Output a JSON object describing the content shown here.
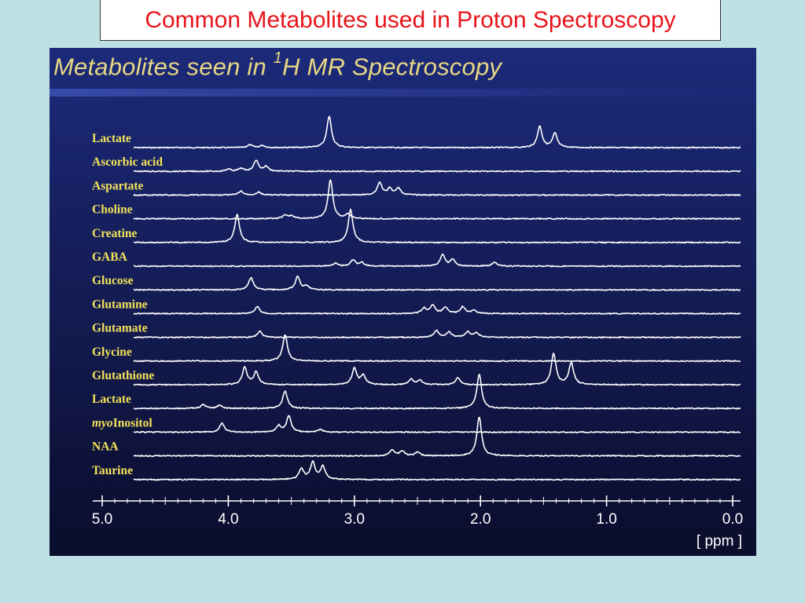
{
  "slide_title": "Common Metabolites used in Proton Spectroscopy",
  "colors": {
    "background": "#bde0e4",
    "title_text": "#e8141a",
    "panel_top": "#1c2a7a",
    "panel_bottom": "#0b0d2c",
    "label": "#f2e25a",
    "heading": "#e8d784",
    "trace": "#ffffff"
  },
  "chart_data": {
    "type": "line",
    "title_prefix": "Metabolites seen in ",
    "title_superscript": "1",
    "title_suffix": "H MR Spectroscopy",
    "xlabel": "[ ppm ]",
    "xlim": [
      5.0,
      0.0
    ],
    "x_reversed": true,
    "x_ticks": [
      "5.0",
      "4.0",
      "3.0",
      "2.0",
      "1.0",
      "0.0"
    ],
    "series": [
      {
        "name": "Lactate",
        "peaks": [
          [
            3.83,
            0.09
          ],
          [
            3.73,
            0.07
          ],
          [
            3.2,
            1.0
          ],
          [
            1.53,
            0.68
          ],
          [
            1.41,
            0.45
          ]
        ]
      },
      {
        "name": "Ascorbic acid",
        "peaks": [
          [
            4.0,
            0.07
          ],
          [
            3.9,
            0.09
          ],
          [
            3.78,
            0.35
          ],
          [
            3.7,
            0.15
          ]
        ]
      },
      {
        "name": "Aspartate",
        "peaks": [
          [
            3.9,
            0.12
          ],
          [
            3.76,
            0.09
          ],
          [
            2.8,
            0.4
          ],
          [
            2.72,
            0.2
          ],
          [
            2.65,
            0.22
          ]
        ]
      },
      {
        "name": "Choline",
        "peaks": [
          [
            3.55,
            0.11
          ],
          [
            3.5,
            0.09
          ],
          [
            3.19,
            1.25
          ],
          [
            3.05,
            0.15
          ]
        ]
      },
      {
        "name": "Creatine",
        "peaks": [
          [
            3.93,
            0.9
          ],
          [
            3.03,
            1.05
          ]
        ]
      },
      {
        "name": "GABA",
        "peaks": [
          [
            3.15,
            0.09
          ],
          [
            3.01,
            0.2
          ],
          [
            2.94,
            0.11
          ],
          [
            2.3,
            0.36
          ],
          [
            2.22,
            0.22
          ],
          [
            1.89,
            0.13
          ]
        ]
      },
      {
        "name": "Glucose",
        "peaks": [
          [
            3.82,
            0.39
          ],
          [
            3.45,
            0.42
          ],
          [
            3.38,
            0.12
          ]
        ]
      },
      {
        "name": "Glutamine",
        "peaks": [
          [
            3.77,
            0.22
          ],
          [
            2.45,
            0.17
          ],
          [
            2.38,
            0.26
          ],
          [
            2.28,
            0.2
          ],
          [
            2.14,
            0.22
          ],
          [
            2.05,
            0.11
          ]
        ]
      },
      {
        "name": "Glutamate",
        "peaks": [
          [
            3.75,
            0.2
          ],
          [
            2.35,
            0.22
          ],
          [
            2.25,
            0.17
          ],
          [
            2.1,
            0.18
          ],
          [
            2.03,
            0.14
          ]
        ]
      },
      {
        "name": "Glycine",
        "peaks": [
          [
            3.55,
            0.85
          ]
        ]
      },
      {
        "name": "Glutathione",
        "peaks": [
          [
            3.87,
            0.55
          ],
          [
            3.78,
            0.4
          ],
          [
            3.0,
            0.52
          ],
          [
            2.93,
            0.3
          ],
          [
            2.55,
            0.17
          ],
          [
            2.48,
            0.15
          ],
          [
            2.18,
            0.22
          ],
          [
            1.42,
            1.0
          ],
          [
            1.28,
            0.7
          ]
        ]
      },
      {
        "name": "Lactate",
        "peaks": [
          [
            4.2,
            0.12
          ],
          [
            4.07,
            0.1
          ],
          [
            3.55,
            0.55
          ],
          [
            2.01,
            1.1
          ]
        ]
      },
      {
        "name": "myoInositol",
        "italic_prefix": "myo",
        "suffix": "Inositol",
        "peaks": [
          [
            4.05,
            0.28
          ],
          [
            3.6,
            0.2
          ],
          [
            3.52,
            0.5
          ],
          [
            3.27,
            0.09
          ]
        ]
      },
      {
        "name": "NAA",
        "peaks": [
          [
            2.7,
            0.2
          ],
          [
            2.62,
            0.15
          ],
          [
            2.5,
            0.12
          ],
          [
            2.01,
            1.25
          ]
        ]
      },
      {
        "name": "Taurine",
        "peaks": [
          [
            3.42,
            0.35
          ],
          [
            3.33,
            0.55
          ],
          [
            3.25,
            0.42
          ]
        ]
      }
    ]
  }
}
